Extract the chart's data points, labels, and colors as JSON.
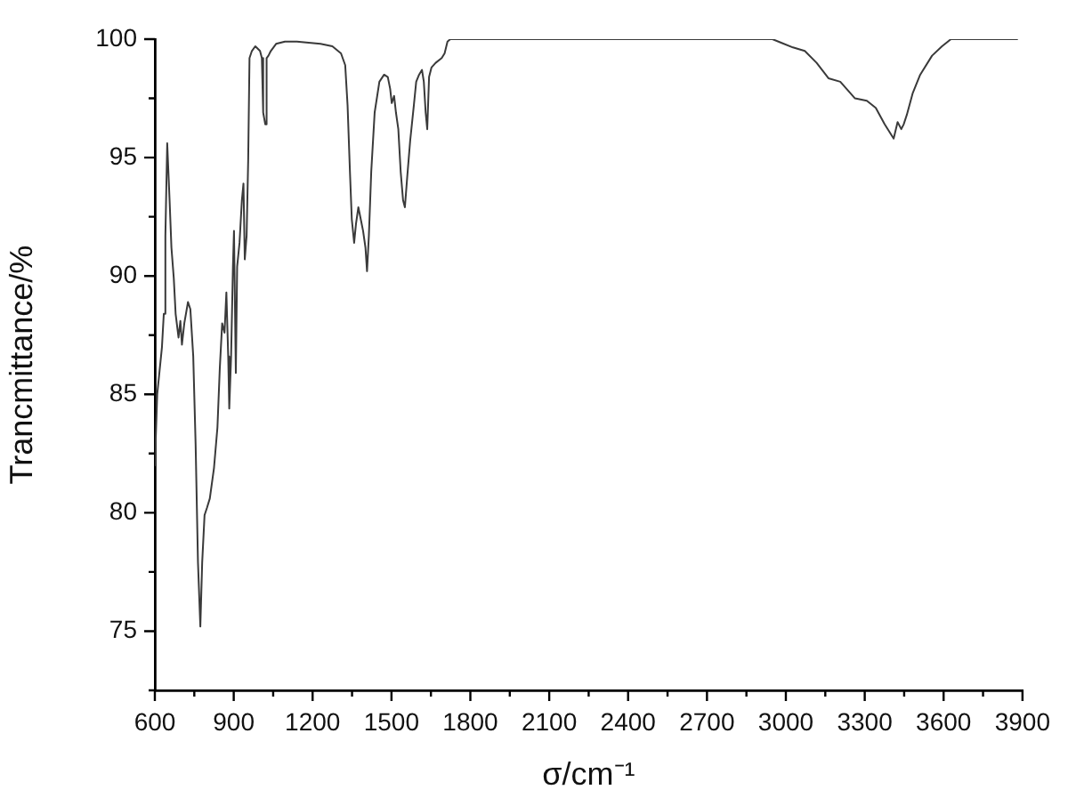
{
  "chart_data": {
    "type": "line",
    "xlabel": "σ/cm⁻¹",
    "ylabel": "Trancmittance/%",
    "x": [
      600,
      609,
      618,
      627,
      634,
      640,
      647,
      656,
      663,
      672,
      679,
      690,
      697,
      703,
      712,
      726,
      735,
      746,
      755,
      764,
      773,
      780,
      789,
      798,
      809,
      825,
      838,
      847,
      856,
      865,
      872,
      879,
      883,
      890,
      897,
      901,
      908,
      913,
      922,
      931,
      937,
      942,
      949,
      955,
      960,
      969,
      982,
      1000,
      1007,
      1012,
      1020,
      1025,
      1032,
      1041,
      1061,
      1095,
      1140,
      1230,
      1275,
      1308,
      1324,
      1333,
      1342,
      1349,
      1358,
      1365,
      1374,
      1383,
      1392,
      1401,
      1407,
      1414,
      1423,
      1436,
      1454,
      1472,
      1486,
      1495,
      1501,
      1510,
      1517,
      1526,
      1535,
      1544,
      1551,
      1560,
      1571,
      1585,
      1594,
      1605,
      1616,
      1623,
      1630,
      1636,
      1643,
      1652,
      1668,
      1691,
      1702,
      1713,
      1724,
      2949,
      2982,
      3027,
      3072,
      3117,
      3162,
      3207,
      3263,
      3308,
      3342,
      3376,
      3410,
      3425,
      3439,
      3448,
      3460,
      3482,
      3511,
      3556,
      3594,
      3628,
      3880
    ],
    "series": [
      {
        "color": "#3a3a3a",
        "values": [
          82,
          85,
          86,
          87,
          88.4,
          91.7,
          95.6,
          93.2,
          91.2,
          89.9,
          88.4,
          87.4,
          88.1,
          87.1,
          88,
          88.9,
          88.6,
          86.6,
          82.9,
          77.9,
          75.2,
          77.9,
          79.9,
          80.2,
          80.6,
          81.9,
          83.6,
          86.1,
          88,
          87.6,
          89.3,
          86.6,
          84.4,
          86.6,
          90.4,
          91.9,
          85.9,
          90.4,
          91.4,
          93.2,
          93.9,
          90.7,
          91.7,
          94.9,
          99.2,
          99.5,
          99.7,
          99.5,
          99.2,
          96.9,
          96.4,
          99.2,
          99.3,
          99.5,
          99.8,
          99.9,
          99.9,
          99.8,
          99.7,
          99.4,
          98.9,
          97.2,
          94.4,
          92.4,
          91.4,
          92.2,
          92.9,
          92.4,
          91.9,
          91.2,
          90.2,
          91.7,
          94.4,
          96.9,
          98.2,
          98.5,
          98.4,
          97.9,
          97.3,
          97.6,
          96.9,
          96.2,
          94.4,
          93.2,
          92.9,
          94.2,
          95.7,
          97.2,
          98.2,
          98.5,
          98.7,
          98.2,
          96.9,
          96.2,
          98.4,
          98.8,
          99,
          99.2,
          99.4,
          99.9,
          100,
          100,
          99.85,
          99.65,
          99.5,
          99,
          98.35,
          98.2,
          97.5,
          97.4,
          97.1,
          96.4,
          95.8,
          96.5,
          96.2,
          96.4,
          96.8,
          97.7,
          98.5,
          99.3,
          99.7,
          100,
          100
        ]
      }
    ],
    "xlim": [
      600,
      3900
    ],
    "xticks": [
      600,
      {
        "value": 750,
        "label": null
      },
      900,
      {
        "value": 1050,
        "label": null
      },
      1200,
      {
        "value": 1350,
        "label": null
      },
      1500,
      {
        "value": 1650,
        "label": null
      },
      1800,
      {
        "value": 1950,
        "label": null
      },
      2100,
      {
        "value": 2250,
        "label": null
      },
      2400,
      {
        "value": 2550,
        "label": null
      },
      2700,
      {
        "value": 2850,
        "label": null
      },
      3000,
      {
        "value": 3150,
        "label": null
      },
      3300,
      {
        "value": 3450,
        "label": null
      },
      3600,
      {
        "value": 3750,
        "label": null
      },
      3900
    ],
    "ylim": [
      72.5,
      100
    ],
    "yticks": [
      {
        "value": 72.5,
        "label": null
      },
      75,
      {
        "value": 77.5,
        "label": null
      },
      80,
      {
        "value": 82.5,
        "label": null
      },
      85,
      {
        "value": 87.5,
        "label": null
      },
      90,
      {
        "value": 92.5,
        "label": null
      },
      95,
      {
        "value": 97.5,
        "label": null
      },
      100
    ]
  }
}
